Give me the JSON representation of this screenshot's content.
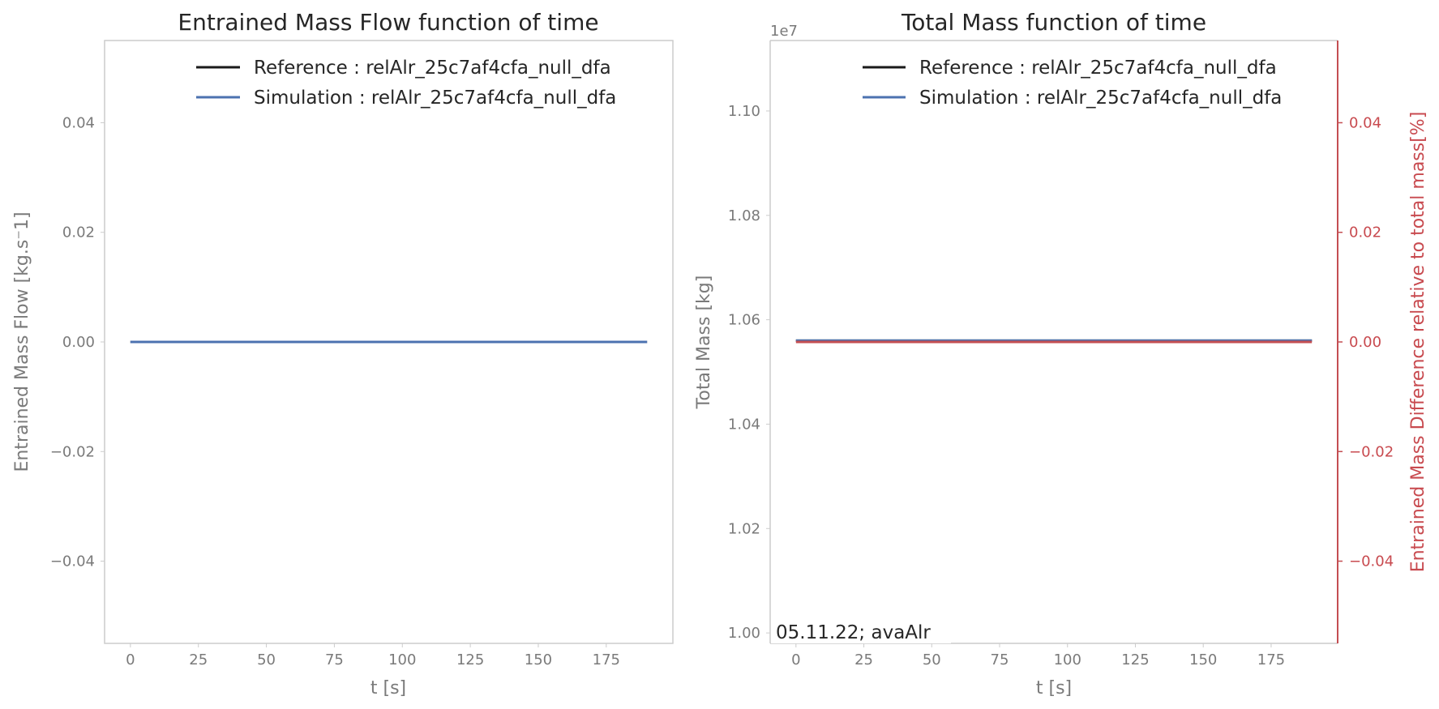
{
  "colors": {
    "reference": "#1a1a1a",
    "simulation": "#4c72b0",
    "difference": "#c44e52",
    "frame": "#cccccc",
    "tick_text": "#7a7a7a"
  },
  "chart_data": [
    {
      "type": "line",
      "title": "Entrained Mass Flow function of time",
      "xlabel": "t [s]",
      "ylabel": "Entrained Mass Flow [kg.s⁻1]",
      "xlim": [
        -9.5,
        199.5
      ],
      "ylim": [
        -0.055,
        0.055
      ],
      "xticks": [
        0,
        25,
        50,
        75,
        100,
        125,
        150,
        175
      ],
      "xtick_labels": [
        "0",
        "25",
        "50",
        "75",
        "100",
        "125",
        "150",
        "175"
      ],
      "yticks": [
        -0.04,
        -0.02,
        0.0,
        0.02,
        0.04
      ],
      "ytick_labels": [
        "−0.04",
        "−0.02",
        "0.00",
        "0.02",
        "0.04"
      ],
      "legend_position": "top-right",
      "grid": false,
      "series": [
        {
          "name": "Reference : relAlr_25c7af4cfa_null_dfa",
          "color": "#1a1a1a",
          "x": [
            0,
            190
          ],
          "y": [
            0,
            0
          ]
        },
        {
          "name": "Simulation : relAlr_25c7af4cfa_null_dfa",
          "color": "#4c72b0",
          "x": [
            0,
            190
          ],
          "y": [
            0,
            0
          ]
        }
      ]
    },
    {
      "type": "line",
      "title": "Total Mass function of time",
      "xlabel": "t [s]",
      "ylabel": "Total Mass [kg]",
      "y_offset_label": "1e7",
      "xlim": [
        -9.5,
        199.5
      ],
      "ylim": [
        0.998,
        1.1135
      ],
      "xticks": [
        0,
        25,
        50,
        75,
        100,
        125,
        150,
        175
      ],
      "xtick_labels": [
        "0",
        "25",
        "50",
        "75",
        "100",
        "125",
        "150",
        "175"
      ],
      "yticks": [
        1.0,
        1.02,
        1.04,
        1.06,
        1.08,
        1.1
      ],
      "ytick_labels": [
        "1.00",
        "1.02",
        "1.04",
        "1.06",
        "1.08",
        "1.10"
      ],
      "y2label": "Entrained Mass Difference relative to total mass[%]",
      "y2lim": [
        -0.055,
        0.055
      ],
      "y2ticks": [
        -0.04,
        -0.02,
        0.0,
        0.02,
        0.04
      ],
      "y2tick_labels": [
        "−0.04",
        "−0.02",
        "0.00",
        "0.02",
        "0.04"
      ],
      "legend_position": "top-right",
      "grid": false,
      "annotation": "05.11.22; avaAlr",
      "series": [
        {
          "name": "Reference : relAlr_25c7af4cfa_null_dfa",
          "color": "#1a1a1a",
          "x": [
            0,
            190
          ],
          "y": [
            1.056,
            1.056
          ]
        },
        {
          "name": "Simulation : relAlr_25c7af4cfa_null_dfa",
          "color": "#4c72b0",
          "x": [
            0,
            190
          ],
          "y": [
            1.056,
            1.056
          ]
        }
      ],
      "secondary_series": [
        {
          "color": "#c44e52",
          "x": [
            0,
            190
          ],
          "y": [
            0,
            0
          ]
        }
      ]
    }
  ]
}
